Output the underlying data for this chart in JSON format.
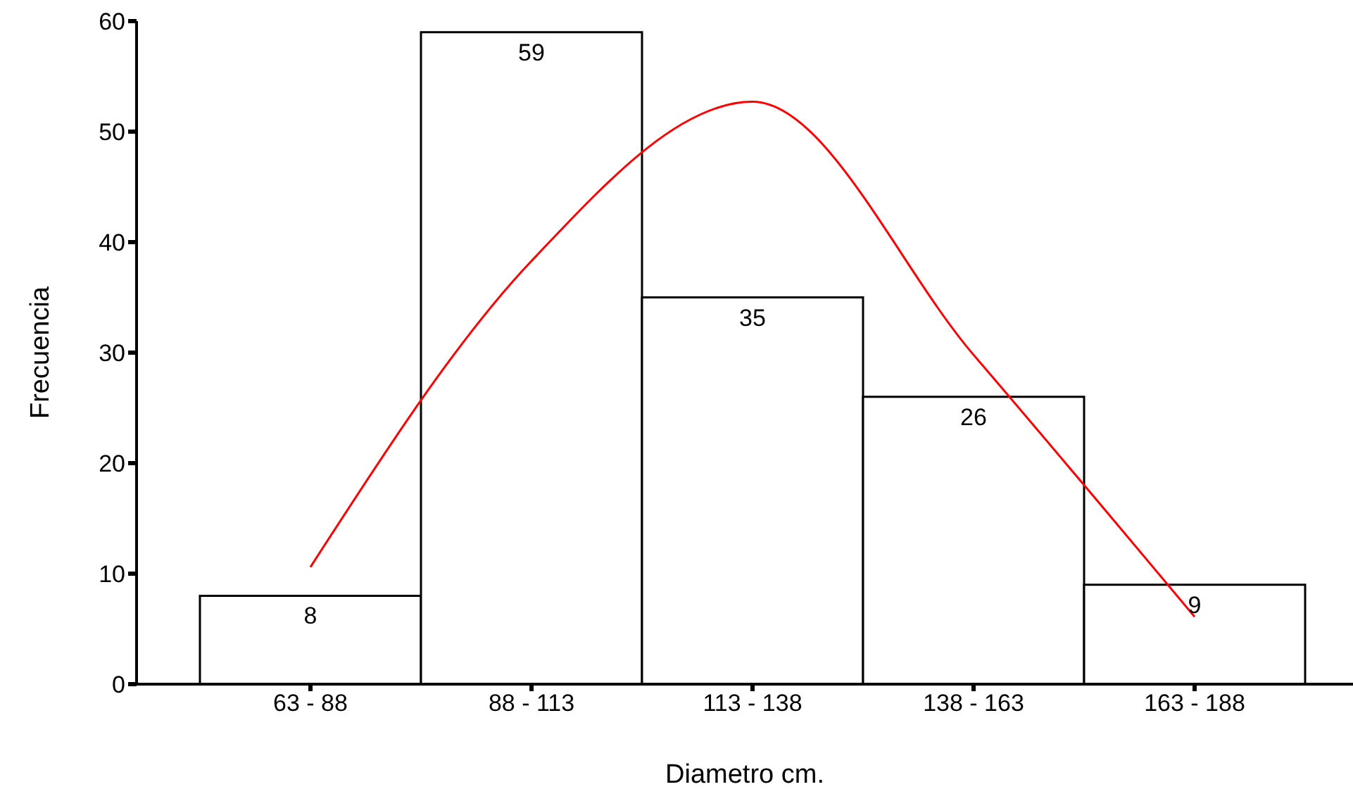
{
  "chart_data": {
    "type": "bar",
    "xlabel": "Diametro cm.",
    "ylabel": "Frecuencia",
    "categories": [
      "63 - 88",
      "88 - 113",
      "113 - 138",
      "138 - 163",
      "163 - 188"
    ],
    "ylim": [
      0,
      60
    ],
    "yticks": [
      0,
      10,
      20,
      30,
      40,
      50,
      60
    ],
    "grid": false,
    "legend": false,
    "series": [
      {
        "color": "#ffffff",
        "values": [
          8,
          59,
          35,
          26,
          9
        ],
        "value_labels": [
          "8",
          "59",
          "35",
          "26",
          "9"
        ]
      },
      {
        "type": "line",
        "color": "#ff0000",
        "marker": "none",
        "values": [
          10.6,
          38.3,
          52.7,
          29.8,
          6.1
        ]
      }
    ]
  }
}
